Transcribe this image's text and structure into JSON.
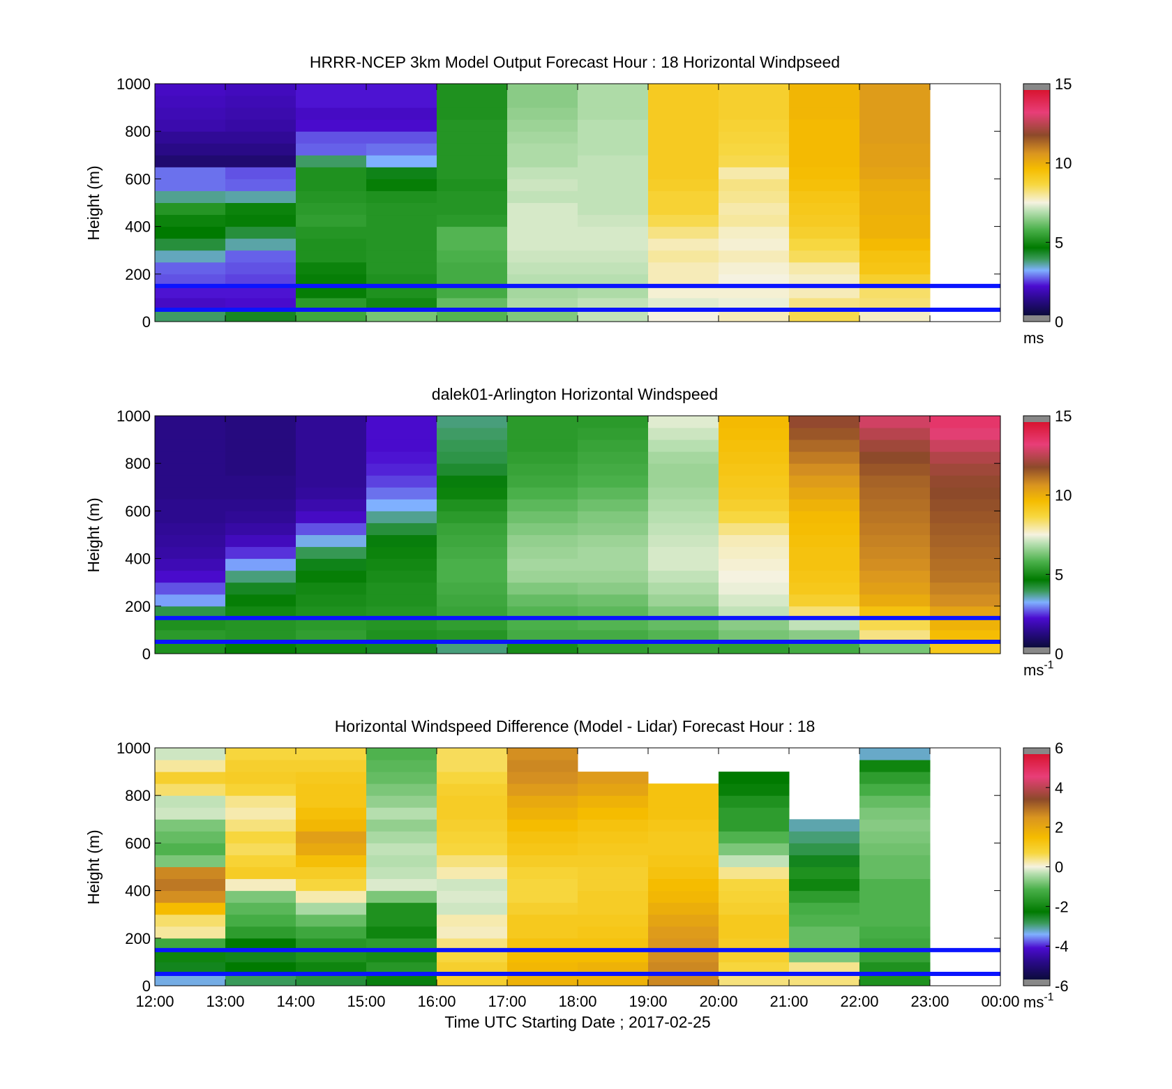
{
  "figure": {
    "xlabel": "Time UTC  Starting Date ; 2017-02-25",
    "x_ticks": [
      "12:00",
      "13:00",
      "14:00",
      "15:00",
      "16:00",
      "17:00",
      "18:00",
      "19:00",
      "20:00",
      "21:00",
      "22:00",
      "23:00",
      "00:00"
    ],
    "reference_lines_m": [
      50,
      150
    ],
    "reference_line_color": "#0a14ff"
  },
  "chart_data": [
    {
      "type": "heatmap",
      "title": "HRRR-NCEP 3km Model Output   Forecast Hour : 18 Horizontal Windpseed",
      "ylabel": "Height (m)",
      "ylim": [
        0,
        1000
      ],
      "y_ticks": [
        "0",
        "200",
        "400",
        "600",
        "800",
        "1000"
      ],
      "colorbar": {
        "min": 0,
        "max": 15,
        "ticks": [
          "0",
          "5",
          "10",
          "15"
        ],
        "unit": "ms"
      },
      "hours": [
        "12:00",
        "13:00",
        "14:00",
        "15:00",
        "16:00",
        "17:00",
        "18:00",
        "19:00",
        "20:00",
        "21:00",
        "22:00"
      ],
      "heights_m": [
        25,
        75,
        125,
        175,
        225,
        275,
        325,
        375,
        425,
        475,
        525,
        575,
        625,
        675,
        725,
        775,
        825,
        875,
        925,
        975
      ],
      "values": [
        [
          3.7,
          4.2,
          5.5,
          6.2,
          5.8,
          6.3,
          7.0,
          7.5,
          7.8,
          8.6,
          7.7
        ],
        [
          1.8,
          1.9,
          5.2,
          4.8,
          6.0,
          6.8,
          7.0,
          7.3,
          7.4,
          8.2,
          8.3
        ],
        [
          2.0,
          2.0,
          4.6,
          5.0,
          5.6,
          6.7,
          6.8,
          7.6,
          7.6,
          7.8,
          8.4
        ],
        [
          2.4,
          2.3,
          4.6,
          5.0,
          5.6,
          6.9,
          6.9,
          7.8,
          7.5,
          7.7,
          9.0
        ],
        [
          2.5,
          2.4,
          4.7,
          5.1,
          5.6,
          7.0,
          7.0,
          7.8,
          7.6,
          7.9,
          9.4
        ],
        [
          3.3,
          2.5,
          5.0,
          5.1,
          5.7,
          7.1,
          7.1,
          8.0,
          7.8,
          8.5,
          9.5
        ],
        [
          4.0,
          3.4,
          5.0,
          5.1,
          5.8,
          7.2,
          7.2,
          7.8,
          7.6,
          8.7,
          9.8
        ],
        [
          4.5,
          4.0,
          5.1,
          5.1,
          5.8,
          7.2,
          7.2,
          8.2,
          7.7,
          9.0,
          10.0
        ],
        [
          4.7,
          4.6,
          5.3,
          5.1,
          5.2,
          7.2,
          7.1,
          8.6,
          8.0,
          9.2,
          10.0
        ],
        [
          5.1,
          4.7,
          5.2,
          5.1,
          5.1,
          7.2,
          7.0,
          8.9,
          7.9,
          9.3,
          10.1
        ],
        [
          3.5,
          3.4,
          5.1,
          5.0,
          5.1,
          7.0,
          7.0,
          8.9,
          8.1,
          9.4,
          10.1
        ],
        [
          2.6,
          2.5,
          5.0,
          4.6,
          5.0,
          7.1,
          7.0,
          9.1,
          8.2,
          9.6,
          10.2
        ],
        [
          2.6,
          2.4,
          5.0,
          4.3,
          5.1,
          7.0,
          7.0,
          9.2,
          7.9,
          9.7,
          10.4
        ],
        [
          0.7,
          0.7,
          3.7,
          3.0,
          5.1,
          6.8,
          7.0,
          9.2,
          8.6,
          9.8,
          10.5
        ],
        [
          1.0,
          1.0,
          2.5,
          2.6,
          5.1,
          6.8,
          6.9,
          9.2,
          8.7,
          9.8,
          10.5
        ],
        [
          1.2,
          1.2,
          2.4,
          2.4,
          5.1,
          6.7,
          6.9,
          9.2,
          8.8,
          9.8,
          10.6
        ],
        [
          1.5,
          1.4,
          1.9,
          1.9,
          5.1,
          6.6,
          6.9,
          9.2,
          8.9,
          9.8,
          10.6
        ],
        [
          1.6,
          1.5,
          1.8,
          1.8,
          5.0,
          6.5,
          6.8,
          9.2,
          9.0,
          9.9,
          10.6
        ],
        [
          1.7,
          1.6,
          2.0,
          2.0,
          5.0,
          6.4,
          6.8,
          9.2,
          9.0,
          9.9,
          10.6
        ],
        [
          1.8,
          1.7,
          2.0,
          2.0,
          5.0,
          6.4,
          6.8,
          9.2,
          9.0,
          9.9,
          10.6
        ]
      ]
    },
    {
      "type": "heatmap",
      "title": "dalek01-Arlington  Horizontal Windspeed",
      "ylabel": "Height (m)",
      "ylim": [
        0,
        1000
      ],
      "y_ticks": [
        "0",
        "200",
        "400",
        "600",
        "800",
        "1000"
      ],
      "colorbar": {
        "min": 0,
        "max": 15,
        "ticks": [
          "0",
          "5",
          "10",
          "15"
        ],
        "unit": "ms-1"
      },
      "hours": [
        "12:00",
        "13:00",
        "14:00",
        "15:00",
        "16:00",
        "17:00",
        "18:00",
        "19:00",
        "20:00",
        "21:00",
        "22:00",
        "23:00"
      ],
      "heights_m": [
        25,
        75,
        125,
        175,
        225,
        275,
        325,
        375,
        425,
        475,
        525,
        575,
        625,
        675,
        725,
        775,
        825,
        875,
        925,
        975
      ],
      "values": [
        [
          5.0,
          4.6,
          4.8,
          4.2,
          3.6,
          4.9,
          5.3,
          5.4,
          5.3,
          5.6,
          6.2,
          9.3
        ],
        [
          5.2,
          5.1,
          5.3,
          5.0,
          5.1,
          5.6,
          5.6,
          5.8,
          6.2,
          6.4,
          8.2,
          9.7
        ],
        [
          5.0,
          5.1,
          5.2,
          5.1,
          5.3,
          5.7,
          5.8,
          6.0,
          6.4,
          7.0,
          8.6,
          10.0
        ],
        [
          3.9,
          4.8,
          5.0,
          5.1,
          5.4,
          5.8,
          5.9,
          6.3,
          7.0,
          8.3,
          9.5,
          10.4
        ],
        [
          2.9,
          4.6,
          4.9,
          5.0,
          5.5,
          6.0,
          6.1,
          6.6,
          7.2,
          9.0,
          10.2,
          10.9
        ],
        [
          2.4,
          4.2,
          4.8,
          5.0,
          5.6,
          6.3,
          6.4,
          6.8,
          7.4,
          9.3,
          10.5,
          11.1
        ],
        [
          1.9,
          3.6,
          4.6,
          4.9,
          5.7,
          6.6,
          6.6,
          7.0,
          7.5,
          9.4,
          10.7,
          11.3
        ],
        [
          1.6,
          2.9,
          4.3,
          4.8,
          5.7,
          6.7,
          6.7,
          7.2,
          7.6,
          9.5,
          10.9,
          11.4
        ],
        [
          1.4,
          2.2,
          3.8,
          4.7,
          5.6,
          6.6,
          6.7,
          7.2,
          7.7,
          9.5,
          11.0,
          11.5
        ],
        [
          1.3,
          1.7,
          3.1,
          4.4,
          5.5,
          6.5,
          6.6,
          7.1,
          7.8,
          9.6,
          11.1,
          11.6
        ],
        [
          1.2,
          1.4,
          2.4,
          4.0,
          5.4,
          6.3,
          6.4,
          7.0,
          8.2,
          9.7,
          11.2,
          11.7
        ],
        [
          1.1,
          1.2,
          1.8,
          3.5,
          5.2,
          6.1,
          6.3,
          6.9,
          8.7,
          9.8,
          11.3,
          11.8
        ],
        [
          1.1,
          1.1,
          1.5,
          3.0,
          5.0,
          5.9,
          6.1,
          6.8,
          9.0,
          10.0,
          11.4,
          11.9
        ],
        [
          1.0,
          1.0,
          1.3,
          2.6,
          4.7,
          5.7,
          5.9,
          6.7,
          9.2,
          10.3,
          11.5,
          12.0
        ],
        [
          1.0,
          1.0,
          1.2,
          2.3,
          4.4,
          5.5,
          5.7,
          6.6,
          9.3,
          10.6,
          11.6,
          12.1
        ],
        [
          1.0,
          0.9,
          1.2,
          2.1,
          4.1,
          5.4,
          5.6,
          6.6,
          9.4,
          10.9,
          11.8,
          12.3
        ],
        [
          1.0,
          0.9,
          1.2,
          2.0,
          3.9,
          5.3,
          5.5,
          6.7,
          9.5,
          11.2,
          12.0,
          12.6
        ],
        [
          1.0,
          0.9,
          1.2,
          1.9,
          3.8,
          5.2,
          5.4,
          6.9,
          9.6,
          11.5,
          12.3,
          13.0
        ],
        [
          1.0,
          0.9,
          1.2,
          1.9,
          3.7,
          5.2,
          5.3,
          7.1,
          9.7,
          11.8,
          12.7,
          13.4
        ],
        [
          1.0,
          0.9,
          1.2,
          1.9,
          3.6,
          5.2,
          5.2,
          7.3,
          9.8,
          12.1,
          13.1,
          13.8
        ]
      ]
    },
    {
      "type": "heatmap",
      "title": "Horizontal Windspeed Difference (Model - Lidar) Forecast Hour : 18",
      "ylabel": "Height (m)",
      "ylim": [
        0,
        1000
      ],
      "y_ticks": [
        "0",
        "200",
        "400",
        "600",
        "800",
        "1000"
      ],
      "colorbar": {
        "min": -6,
        "max": 6,
        "ticks": [
          "-6",
          "-4",
          "-2",
          "0",
          "2",
          "4",
          "6"
        ],
        "unit": "ms-1"
      },
      "hours": [
        "12:00",
        "13:00",
        "14:00",
        "15:00",
        "16:00",
        "17:00",
        "18:00",
        "19:00",
        "20:00",
        "21:00",
        "22:00"
      ],
      "heights_m": [
        25,
        75,
        125,
        175,
        225,
        275,
        325,
        375,
        425,
        475,
        525,
        575,
        625,
        675,
        725,
        775,
        825,
        875,
        925,
        975
      ],
      "values": [
        [
          -3.5,
          -3.0,
          -2.8,
          -2.5,
          1.2,
          2.0,
          2.0,
          2.8,
          0.6,
          0.6,
          -2.0
        ],
        [
          -2.6,
          -2.4,
          -2.2,
          -1.9,
          1.2,
          1.9,
          2.0,
          2.8,
          1.0,
          0.5,
          -2.0
        ],
        [
          -2.2,
          -2.6,
          -2.0,
          -2.1,
          1.0,
          1.8,
          1.8,
          2.7,
          1.2,
          -1.0,
          -1.7
        ],
        [
          -1.6,
          -2.4,
          -1.9,
          -1.8,
          0.6,
          1.6,
          1.6,
          2.6,
          1.3,
          -1.2,
          -1.6
        ],
        [
          0.4,
          -1.8,
          -1.6,
          -2.2,
          0.2,
          1.4,
          1.5,
          2.5,
          1.4,
          -1.2,
          -1.5
        ],
        [
          0.7,
          -1.5,
          -1.2,
          -2.0,
          0.3,
          1.4,
          1.4,
          2.3,
          1.4,
          -1.4,
          -1.4
        ],
        [
          1.8,
          -1.3,
          -0.6,
          -2.0,
          -0.3,
          1.2,
          1.3,
          2.1,
          1.2,
          -1.5,
          -1.4
        ],
        [
          2.7,
          -1.0,
          0.3,
          -1.0,
          -0.2,
          1.0,
          1.3,
          1.9,
          1.1,
          -1.8,
          -1.4
        ],
        [
          3.0,
          0.2,
          1.0,
          -0.2,
          -0.3,
          1.0,
          1.2,
          1.8,
          1.0,
          -2.2,
          -1.4
        ],
        [
          2.8,
          1.3,
          1.3,
          -0.4,
          0.3,
          1.1,
          1.2,
          1.6,
          0.5,
          -2.0,
          -1.2
        ],
        [
          -1.0,
          1.1,
          1.7,
          -0.5,
          0.6,
          1.3,
          1.3,
          1.5,
          -0.4,
          -2.6,
          -1.2
        ],
        [
          -1.4,
          0.8,
          2.2,
          -0.4,
          1.0,
          1.5,
          1.4,
          1.4,
          -1.0,
          -2.9,
          -1.1
        ],
        [
          -1.2,
          1.0,
          2.4,
          -0.6,
          1.1,
          1.6,
          1.5,
          1.4,
          -1.4,
          -3.1,
          -1.0
        ],
        [
          -1.0,
          0.6,
          1.9,
          -0.8,
          1.2,
          1.8,
          1.6,
          1.5,
          -1.8,
          -3.3,
          -0.9
        ],
        [
          -0.3,
          0.3,
          1.7,
          -0.5,
          1.3,
          2.0,
          1.8,
          1.6,
          -1.8,
          -9999,
          -1.0
        ],
        [
          -0.4,
          0.5,
          1.5,
          -0.8,
          1.3,
          2.2,
          2.0,
          1.6,
          -2.0,
          -9999,
          -1.2
        ],
        [
          0.7,
          1.1,
          1.5,
          -1.0,
          1.2,
          2.5,
          2.3,
          1.6,
          -2.3,
          -9999,
          -1.5
        ],
        [
          1.2,
          1.3,
          1.4,
          -1.2,
          1.0,
          2.7,
          2.5,
          -9999,
          -2.4,
          -9999,
          -1.8
        ],
        [
          0.4,
          1.2,
          1.2,
          -1.3,
          0.8,
          2.8,
          -9999,
          -9999,
          -9999,
          -9999,
          -2.2
        ],
        [
          -0.3,
          1.0,
          1.0,
          -1.4,
          0.8,
          2.7,
          -9999,
          -9999,
          -9999,
          -9999,
          -3.4
        ]
      ],
      "missing_value": -9999
    }
  ]
}
